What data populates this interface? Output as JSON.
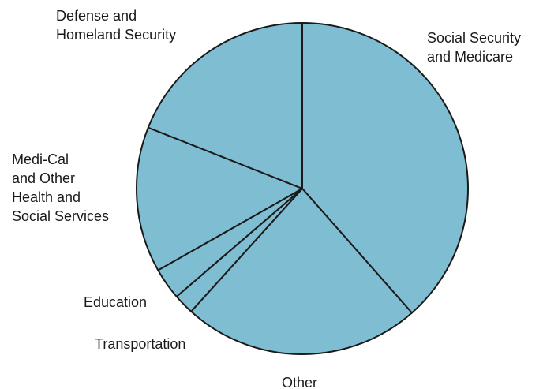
{
  "chart_data": {
    "type": "pie",
    "title": "",
    "colors": {
      "fill": "#7fbdd2",
      "stroke": "#1a1a1a",
      "text": "#1a1a1a"
    },
    "start_angle_deg": 0,
    "direction": "clockwise",
    "slices": [
      {
        "label": "Social Security\nand Medicare",
        "value": 38.5
      },
      {
        "label": "Other",
        "value": 23.2
      },
      {
        "label": "Transportation",
        "value": 2.0
      },
      {
        "label": "Education",
        "value": 3.1
      },
      {
        "label": "Medi-Cal\nand Other\nHealth and\nSocial Services",
        "value": 14.2
      },
      {
        "label": "Defense and\nHomeland Security",
        "value": 19.0
      }
    ]
  }
}
